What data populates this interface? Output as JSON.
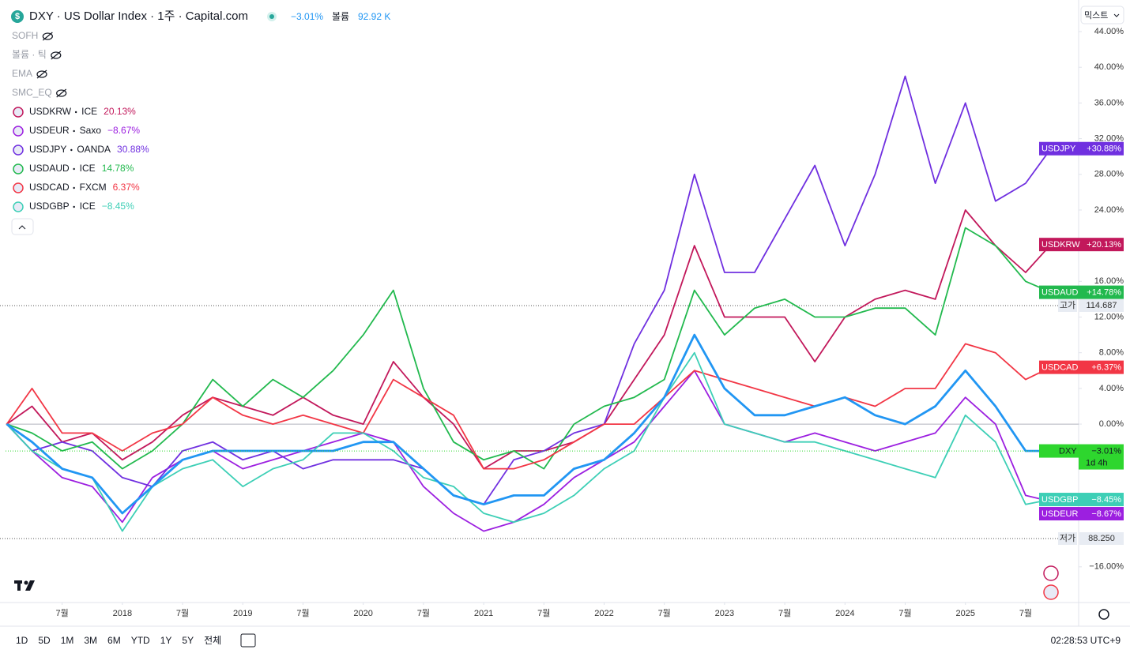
{
  "header": {
    "icon": "$",
    "title": "DXY · US Dollar Index · 1주 · Capital.com",
    "change": "−3.01%",
    "volume_label": "볼륨",
    "volume": "92.92 K"
  },
  "indicators": [
    "SOFH",
    "볼륨 · 틱",
    "EMA",
    "SMC_EQ"
  ],
  "scale_mode": "믹스트",
  "toolbar": {
    "ranges": [
      "1D",
      "5D",
      "1M",
      "3M",
      "6M",
      "YTD",
      "1Y",
      "5Y",
      "전체"
    ],
    "clock": "02:28:53 UTC+9"
  },
  "levels": [
    {
      "label": "고가",
      "value": "114.687"
    },
    {
      "label": "저가",
      "value": "88.250"
    }
  ],
  "chart_data": {
    "type": "line",
    "x": [
      2017.04,
      2017.25,
      2017.5,
      2017.75,
      2018,
      2018.25,
      2018.5,
      2018.75,
      2019,
      2019.25,
      2019.5,
      2019.75,
      2020,
      2020.25,
      2020.5,
      2020.75,
      2021,
      2021.25,
      2021.5,
      2021.75,
      2022,
      2022.25,
      2022.5,
      2022.75,
      2023,
      2023.25,
      2023.5,
      2023.75,
      2024,
      2024.25,
      2024.5,
      2024.75,
      2025,
      2025.25,
      2025.5,
      2025.71
    ],
    "xlim": [
      2017.03,
      2025.94
    ],
    "xticks": [
      {
        "value": 2017.5,
        "label": "7월"
      },
      2018,
      {
        "value": 2018.5,
        "label": "7월"
      },
      2019,
      {
        "value": 2019.5,
        "label": "7월"
      },
      2020,
      {
        "value": 2020.5,
        "label": "7월"
      },
      2021,
      {
        "value": 2021.5,
        "label": "7월"
      },
      2022,
      {
        "value": 2022.5,
        "label": "7월"
      },
      2023,
      {
        "value": 2023.5,
        "label": "7월"
      },
      2024,
      {
        "value": 2024.5,
        "label": "7월"
      },
      2025,
      {
        "value": 2025.5,
        "label": "7월"
      }
    ],
    "ylim": [
      -20,
      47.1
    ],
    "yticks": [
      {
        "value": 44,
        "label": "44.00%"
      },
      {
        "value": 40,
        "label": "40.00%"
      },
      {
        "value": 36,
        "label": "36.00%"
      },
      {
        "value": 32,
        "label": "32.00%"
      },
      {
        "value": 28,
        "label": "28.00%"
      },
      {
        "value": 24,
        "label": "24.00%"
      },
      {
        "value": 16,
        "label": "16.00%"
      },
      {
        "value": 12,
        "label": "12.00%"
      },
      {
        "value": 8,
        "label": "8.00%"
      },
      {
        "value": 4,
        "label": "4.00%"
      },
      {
        "value": 0,
        "label": "0.00%"
      },
      {
        "value": -16,
        "label": "−16.00%"
      }
    ],
    "grid": false,
    "series": [
      {
        "name": "USDKRW",
        "source": "ICE",
        "color": "#c2185b",
        "legend_value": "20.13%",
        "last_label": "+20.13%",
        "values": [
          0,
          2,
          -2,
          -1,
          -4,
          -2,
          1,
          3,
          2,
          1,
          3,
          1,
          0,
          7,
          3,
          0,
          -5,
          -3,
          -3,
          -2,
          0,
          5,
          10,
          20,
          12,
          12,
          12,
          7,
          12,
          14,
          15,
          14,
          24,
          20,
          17,
          20.13
        ]
      },
      {
        "name": "USDEUR",
        "source": "Saxo",
        "color": "#9c1fe0",
        "legend_value": "−8.67%",
        "last_label": "−8.67%",
        "values": [
          0,
          -3,
          -6,
          -7,
          -11,
          -6,
          -4,
          -3,
          -5,
          -4,
          -3,
          -2,
          -1,
          -2,
          -7,
          -10,
          -12,
          -11,
          -9,
          -6,
          -4,
          -2,
          2,
          6,
          0,
          -1,
          -2,
          -1,
          -2,
          -3,
          -2,
          -1,
          3,
          0,
          -8,
          -8.67
        ]
      },
      {
        "name": "USDJPY",
        "source": "OANDA",
        "color": "#7030e0",
        "legend_value": "30.88%",
        "last_label": "+30.88%",
        "values": [
          0,
          -3,
          -2,
          -3,
          -6,
          -7,
          -3,
          -2,
          -4,
          -3,
          -5,
          -4,
          -4,
          -4,
          -5,
          -8,
          -9,
          -4,
          -3,
          -1,
          0,
          9,
          15,
          28,
          17,
          17,
          23,
          29,
          20,
          28,
          39,
          27,
          36,
          25,
          27,
          30.88
        ]
      },
      {
        "name": "USDAUD",
        "source": "ICE",
        "color": "#22b94e",
        "legend_value": "14.78%",
        "last_label": "+14.78%",
        "values": [
          0,
          -1,
          -3,
          -2,
          -5,
          -3,
          0,
          5,
          2,
          5,
          3,
          6,
          10,
          15,
          4,
          -2,
          -4,
          -3,
          -5,
          0,
          2,
          3,
          5,
          15,
          10,
          13,
          14,
          12,
          12,
          13,
          13,
          10,
          22,
          20,
          16,
          14.78
        ]
      },
      {
        "name": "USDCAD",
        "source": "FXCM",
        "color": "#f23645",
        "legend_value": "6.37%",
        "last_label": "+6.37%",
        "values": [
          0,
          4,
          -1,
          -1,
          -3,
          -1,
          0,
          3,
          1,
          0,
          1,
          0,
          -1,
          5,
          3,
          1,
          -5,
          -5,
          -4,
          -2,
          0,
          0,
          3,
          6,
          5,
          4,
          3,
          2,
          3,
          2,
          4,
          4,
          9,
          8,
          5,
          6.37
        ]
      },
      {
        "name": "USDGBP",
        "source": "ICE",
        "color": "#3dcfb6",
        "legend_value": "−8.45%",
        "last_label": "−8.45%",
        "values": [
          0,
          -3,
          -5,
          -6,
          -12,
          -7,
          -5,
          -4,
          -7,
          -5,
          -4,
          -1,
          -1,
          -3,
          -6,
          -7,
          -10,
          -11,
          -10,
          -8,
          -5,
          -3,
          3,
          8,
          0,
          -1,
          -2,
          -2,
          -3,
          -4,
          -5,
          -6,
          1,
          -2,
          -9,
          -8.45
        ]
      },
      {
        "name": "DXY",
        "color": "#2196f3",
        "badge_color": "#2ed62e",
        "last_label": "−3.01%",
        "countdown": "1d 4h",
        "values": [
          0,
          -2,
          -5,
          -6,
          -10,
          -7,
          -4,
          -3,
          -3,
          -3,
          -3,
          -3,
          -2,
          -2,
          -5,
          -8,
          -9,
          -8,
          -8,
          -5,
          -4,
          -1,
          3,
          10,
          4,
          1,
          1,
          2,
          3,
          1,
          0,
          2,
          6,
          2,
          -3,
          -3.01
        ]
      }
    ]
  }
}
